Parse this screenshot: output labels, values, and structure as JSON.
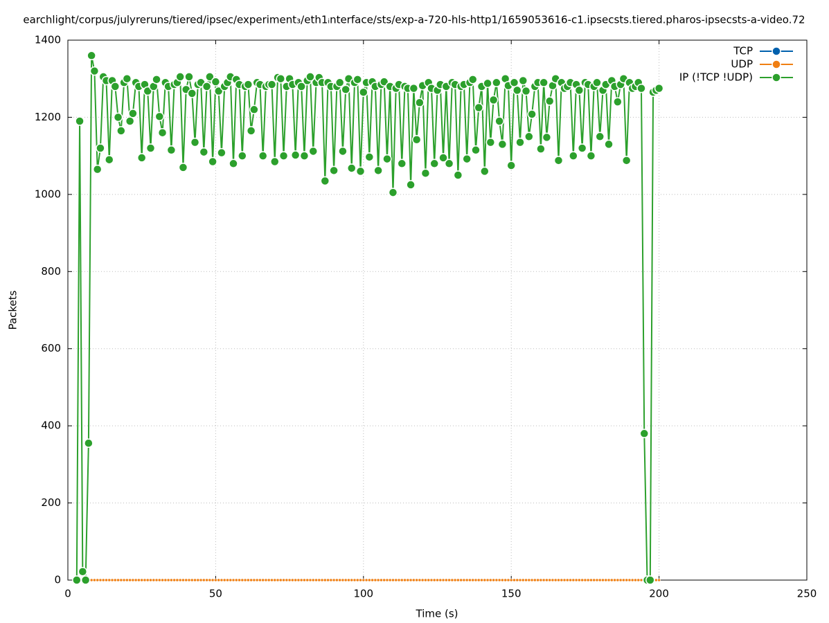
{
  "chart_data": {
    "type": "line",
    "title": "earchlight/corpus/julyreruns/tiered/ipsec/experiment₃/eth1ᵢnterface/sts/exp-a-720-hls-http1/1659053616-c1.ipsecsts.tiered.pharos-ipsecsts-a-video.72",
    "x_label": "Time (s)",
    "y_label": "Packets",
    "xlim": [
      0,
      250
    ],
    "xticks": [
      0,
      50,
      100,
      150,
      200,
      250
    ],
    "ylim": [
      0,
      1400
    ],
    "yticks": [
      0,
      200,
      400,
      600,
      800,
      1000,
      1200,
      1400
    ],
    "grid": true,
    "legend": "top-right",
    "x": [
      3,
      4,
      5,
      6,
      7,
      8,
      9,
      10,
      11,
      12,
      13,
      14,
      15,
      16,
      17,
      18,
      19,
      20,
      21,
      22,
      23,
      24,
      25,
      26,
      27,
      28,
      29,
      30,
      31,
      32,
      33,
      34,
      35,
      36,
      37,
      38,
      39,
      40,
      41,
      42,
      43,
      44,
      45,
      46,
      47,
      48,
      49,
      50,
      51,
      52,
      53,
      54,
      55,
      56,
      57,
      58,
      59,
      60,
      61,
      62,
      63,
      64,
      65,
      66,
      67,
      68,
      69,
      70,
      71,
      72,
      73,
      74,
      75,
      76,
      77,
      78,
      79,
      80,
      81,
      82,
      83,
      84,
      85,
      86,
      87,
      88,
      89,
      90,
      91,
      92,
      93,
      94,
      95,
      96,
      97,
      98,
      99,
      100,
      101,
      102,
      103,
      104,
      105,
      106,
      107,
      108,
      109,
      110,
      111,
      112,
      113,
      114,
      115,
      116,
      117,
      118,
      119,
      120,
      121,
      122,
      123,
      124,
      125,
      126,
      127,
      128,
      129,
      130,
      131,
      132,
      133,
      134,
      135,
      136,
      137,
      138,
      139,
      140,
      141,
      142,
      143,
      144,
      145,
      146,
      147,
      148,
      149,
      150,
      151,
      152,
      153,
      154,
      155,
      156,
      157,
      158,
      159,
      160,
      161,
      162,
      163,
      164,
      165,
      166,
      167,
      168,
      169,
      170,
      171,
      172,
      173,
      174,
      175,
      176,
      177,
      178,
      179,
      180,
      181,
      182,
      183,
      184,
      185,
      186,
      187,
      188,
      189,
      190,
      191,
      192,
      193,
      194,
      195,
      196,
      197,
      198,
      199,
      200
    ],
    "series": [
      {
        "name": "TCP",
        "color": "#0060ad",
        "values": [
          0,
          0,
          0,
          0,
          0,
          0,
          0,
          0,
          0,
          0,
          0,
          0,
          0,
          0,
          0,
          0,
          0,
          0,
          0,
          0,
          0,
          0,
          0,
          0,
          0,
          0,
          0,
          0,
          0,
          0,
          0,
          0,
          0,
          0,
          0,
          0,
          0,
          0,
          0,
          0,
          0,
          0,
          0,
          0,
          0,
          0,
          0,
          0,
          0,
          0,
          0,
          0,
          0,
          0,
          0,
          0,
          0,
          0,
          0,
          0,
          0,
          0,
          0,
          0,
          0,
          0,
          0,
          0,
          0,
          0,
          0,
          0,
          0,
          0,
          0,
          0,
          0,
          0,
          0,
          0,
          0,
          0,
          0,
          0,
          0,
          0,
          0,
          0,
          0,
          0,
          0,
          0,
          0,
          0,
          0,
          0,
          0,
          0,
          0,
          0,
          0,
          0,
          0,
          0,
          0,
          0,
          0,
          0,
          0,
          0,
          0,
          0,
          0,
          0,
          0,
          0,
          0,
          0,
          0,
          0,
          0,
          0,
          0,
          0,
          0,
          0,
          0,
          0,
          0,
          0,
          0,
          0,
          0,
          0,
          0,
          0,
          0,
          0,
          0,
          0,
          0,
          0,
          0,
          0,
          0,
          0,
          0,
          0,
          0,
          0,
          0,
          0,
          0,
          0,
          0,
          0,
          0,
          0,
          0,
          0,
          0,
          0,
          0,
          0,
          0,
          0,
          0,
          0,
          0,
          0,
          0,
          0,
          0,
          0,
          0,
          0,
          0,
          0,
          0,
          0,
          0,
          0,
          0,
          0,
          0,
          0,
          0,
          0,
          0,
          0,
          0,
          0,
          0,
          0,
          0,
          0,
          0,
          0
        ]
      },
      {
        "name": "UDP",
        "color": "#f07f12",
        "values": [
          0,
          0,
          0,
          0,
          0,
          0,
          0,
          0,
          0,
          0,
          0,
          0,
          0,
          0,
          0,
          0,
          0,
          0,
          0,
          0,
          0,
          0,
          0,
          0,
          0,
          0,
          0,
          0,
          0,
          0,
          0,
          0,
          0,
          0,
          0,
          0,
          0,
          0,
          0,
          0,
          0,
          0,
          0,
          0,
          0,
          0,
          0,
          0,
          0,
          0,
          0,
          0,
          0,
          0,
          0,
          0,
          0,
          0,
          0,
          0,
          0,
          0,
          0,
          0,
          0,
          0,
          0,
          0,
          0,
          0,
          0,
          0,
          0,
          0,
          0,
          0,
          0,
          0,
          0,
          0,
          0,
          0,
          0,
          0,
          0,
          0,
          0,
          0,
          0,
          0,
          0,
          0,
          0,
          0,
          0,
          0,
          0,
          0,
          0,
          0,
          0,
          0,
          0,
          0,
          0,
          0,
          0,
          0,
          0,
          0,
          0,
          0,
          0,
          0,
          0,
          0,
          0,
          0,
          0,
          0,
          0,
          0,
          0,
          0,
          0,
          0,
          0,
          0,
          0,
          0,
          0,
          0,
          0,
          0,
          0,
          0,
          0,
          0,
          0,
          0,
          0,
          0,
          0,
          0,
          0,
          0,
          0,
          0,
          0,
          0,
          0,
          0,
          0,
          0,
          0,
          0,
          0,
          0,
          0,
          0,
          0,
          0,
          0,
          0,
          0,
          0,
          0,
          0,
          0,
          0,
          0,
          0,
          0,
          0,
          0,
          0,
          0,
          0,
          0,
          0,
          0,
          0,
          0,
          0,
          0,
          0,
          0,
          0,
          0,
          0,
          0,
          0,
          0,
          0,
          0,
          0,
          0,
          0
        ]
      },
      {
        "name": "IP (!TCP  !UDP)",
        "color": "#2ca02c",
        "values": [
          0,
          1190,
          22,
          0,
          355,
          1360,
          1320,
          1065,
          1120,
          1305,
          1295,
          1090,
          1295,
          1280,
          1200,
          1165,
          1290,
          1300,
          1190,
          1210,
          1290,
          1280,
          1095,
          1285,
          1268,
          1120,
          1280,
          1298,
          1202,
          1160,
          1290,
          1280,
          1115,
          1285,
          1290,
          1305,
          1070,
          1272,
          1305,
          1262,
          1135,
          1285,
          1290,
          1110,
          1280,
          1305,
          1085,
          1292,
          1268,
          1108,
          1280,
          1290,
          1305,
          1080,
          1298,
          1285,
          1100,
          1280,
          1285,
          1165,
          1220,
          1290,
          1285,
          1100,
          1280,
          1285,
          1285,
          1085,
          1303,
          1300,
          1100,
          1280,
          1300,
          1285,
          1102,
          1290,
          1280,
          1100,
          1295,
          1305,
          1112,
          1290,
          1303,
          1290,
          1035,
          1290,
          1280,
          1062,
          1280,
          1290,
          1112,
          1272,
          1300,
          1068,
          1290,
          1298,
          1060,
          1265,
          1290,
          1097,
          1292,
          1280,
          1062,
          1285,
          1292,
          1092,
          1280,
          1005,
          1275,
          1285,
          1080,
          1280,
          1275,
          1025,
          1275,
          1142,
          1238,
          1282,
          1055,
          1290,
          1275,
          1080,
          1270,
          1285,
          1095,
          1280,
          1080,
          1290,
          1285,
          1050,
          1280,
          1285,
          1092,
          1290,
          1298,
          1115,
          1225,
          1280,
          1060,
          1288,
          1135,
          1245,
          1290,
          1190,
          1130,
          1300,
          1282,
          1075,
          1290,
          1270,
          1135,
          1295,
          1268,
          1150,
          1208,
          1280,
          1290,
          1118,
          1290,
          1148,
          1242,
          1282,
          1300,
          1088,
          1290,
          1275,
          1280,
          1290,
          1100,
          1285,
          1270,
          1120,
          1290,
          1285,
          1100,
          1280,
          1290,
          1150,
          1270,
          1285,
          1130,
          1295,
          1280,
          1240,
          1285,
          1300,
          1088,
          1290,
          1275,
          1280,
          1290,
          1275,
          380,
          0,
          0,
          1265,
          1270,
          1275
        ]
      }
    ]
  }
}
